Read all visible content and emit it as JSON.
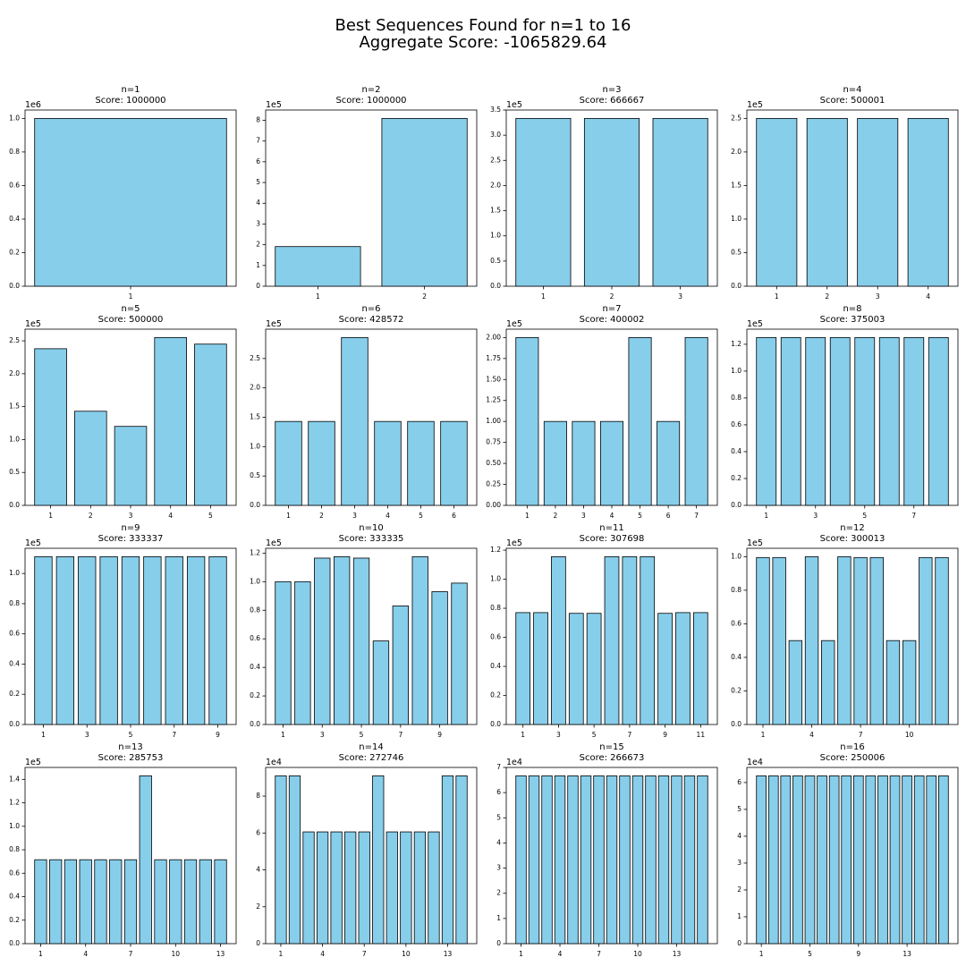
{
  "figure": {
    "title": "Best Sequences Found for n=1 to 16",
    "subtitle": "Aggregate Score: -1065829.64"
  },
  "chart_data": [
    {
      "type": "bar",
      "title": "n=1",
      "subtitle": "Score: 1000000",
      "y_offset_label": "1e6",
      "color": "#87ceeb",
      "categories": [
        "1"
      ],
      "values": [
        1000000
      ],
      "ylim": [
        0,
        1050000
      ],
      "yticks": [
        {
          "value": 0,
          "label": "0.0"
        },
        {
          "value": 200000,
          "label": "0.2"
        },
        {
          "value": 400000,
          "label": "0.4"
        },
        {
          "value": 600000,
          "label": "0.6"
        },
        {
          "value": 800000,
          "label": "0.8"
        },
        {
          "value": 1000000,
          "label": "1.0"
        }
      ]
    },
    {
      "type": "bar",
      "title": "n=2",
      "subtitle": "Score: 1000000",
      "y_offset_label": "1e5",
      "color": "#87ceeb",
      "categories": [
        "1",
        "2"
      ],
      "values": [
        190983,
        809017
      ],
      "ylim": [
        0,
        849468
      ],
      "yticks": [
        {
          "value": 0,
          "label": "0"
        },
        {
          "value": 100000,
          "label": "1"
        },
        {
          "value": 200000,
          "label": "2"
        },
        {
          "value": 300000,
          "label": "3"
        },
        {
          "value": 400000,
          "label": "4"
        },
        {
          "value": 500000,
          "label": "5"
        },
        {
          "value": 600000,
          "label": "6"
        },
        {
          "value": 700000,
          "label": "7"
        },
        {
          "value": 800000,
          "label": "8"
        }
      ]
    },
    {
      "type": "bar",
      "title": "n=3",
      "subtitle": "Score: 666667",
      "y_offset_label": "1e5",
      "color": "#87ceeb",
      "categories": [
        "1",
        "2",
        "3"
      ],
      "values": [
        333333,
        333333,
        333333
      ],
      "ylim": [
        0,
        350000
      ],
      "yticks": [
        {
          "value": 0,
          "label": "0.0"
        },
        {
          "value": 50000,
          "label": "0.5"
        },
        {
          "value": 100000,
          "label": "1.0"
        },
        {
          "value": 150000,
          "label": "1.5"
        },
        {
          "value": 200000,
          "label": "2.0"
        },
        {
          "value": 250000,
          "label": "2.5"
        },
        {
          "value": 300000,
          "label": "3.0"
        },
        {
          "value": 350000,
          "label": "3.5"
        }
      ]
    },
    {
      "type": "bar",
      "title": "n=4",
      "subtitle": "Score: 500001",
      "y_offset_label": "1e5",
      "color": "#87ceeb",
      "categories": [
        "1",
        "2",
        "3",
        "4"
      ],
      "values": [
        250000,
        250000,
        250000,
        250000
      ],
      "ylim": [
        0,
        262500
      ],
      "yticks": [
        {
          "value": 0,
          "label": "0.0"
        },
        {
          "value": 50000,
          "label": "0.5"
        },
        {
          "value": 100000,
          "label": "1.0"
        },
        {
          "value": 150000,
          "label": "1.5"
        },
        {
          "value": 200000,
          "label": "2.0"
        },
        {
          "value": 250000,
          "label": "2.5"
        }
      ]
    },
    {
      "type": "bar",
      "title": "n=5",
      "subtitle": "Score: 500000",
      "y_offset_label": "1e5",
      "color": "#87ceeb",
      "categories": [
        "1",
        "2",
        "3",
        "4",
        "5"
      ],
      "values": [
        238000,
        143000,
        120000,
        255000,
        245000
      ],
      "ylim": [
        0,
        267750
      ],
      "yticks": [
        {
          "value": 0,
          "label": "0.0"
        },
        {
          "value": 50000,
          "label": "0.5"
        },
        {
          "value": 100000,
          "label": "1.0"
        },
        {
          "value": 150000,
          "label": "1.5"
        },
        {
          "value": 200000,
          "label": "2.0"
        },
        {
          "value": 250000,
          "label": "2.5"
        }
      ]
    },
    {
      "type": "bar",
      "title": "n=6",
      "subtitle": "Score: 428572",
      "y_offset_label": "1e5",
      "color": "#87ceeb",
      "categories": [
        "1",
        "2",
        "3",
        "4",
        "5",
        "6"
      ],
      "values": [
        142857,
        142857,
        285714,
        142857,
        142857,
        142857
      ],
      "ylim": [
        0,
        300000
      ],
      "yticks": [
        {
          "value": 0,
          "label": "0.0"
        },
        {
          "value": 50000,
          "label": "0.5"
        },
        {
          "value": 100000,
          "label": "1.0"
        },
        {
          "value": 150000,
          "label": "1.5"
        },
        {
          "value": 200000,
          "label": "2.0"
        },
        {
          "value": 250000,
          "label": "2.5"
        }
      ]
    },
    {
      "type": "bar",
      "title": "n=7",
      "subtitle": "Score: 400002",
      "y_offset_label": "1e5",
      "color": "#87ceeb",
      "categories": [
        "1",
        "2",
        "3",
        "4",
        "5",
        "6",
        "7"
      ],
      "values": [
        200000,
        100000,
        100000,
        100000,
        200000,
        100000,
        200000
      ],
      "ylim": [
        0,
        210000
      ],
      "yticks": [
        {
          "value": 0,
          "label": "0.00"
        },
        {
          "value": 25000,
          "label": "0.25"
        },
        {
          "value": 50000,
          "label": "0.50"
        },
        {
          "value": 75000,
          "label": "0.75"
        },
        {
          "value": 100000,
          "label": "1.00"
        },
        {
          "value": 125000,
          "label": "1.25"
        },
        {
          "value": 150000,
          "label": "1.50"
        },
        {
          "value": 175000,
          "label": "1.75"
        },
        {
          "value": 200000,
          "label": "2.00"
        }
      ]
    },
    {
      "type": "bar",
      "title": "n=8",
      "subtitle": "Score: 375003",
      "y_offset_label": "1e5",
      "color": "#87ceeb",
      "categories": [
        "1",
        null,
        "3",
        null,
        "5",
        null,
        "7",
        null
      ],
      "values": [
        125000,
        125000,
        125000,
        125000,
        125000,
        125000,
        125000,
        125000
      ],
      "ylim": [
        0,
        131250
      ],
      "yticks": [
        {
          "value": 0,
          "label": "0.0"
        },
        {
          "value": 20000,
          "label": "0.2"
        },
        {
          "value": 40000,
          "label": "0.4"
        },
        {
          "value": 60000,
          "label": "0.6"
        },
        {
          "value": 80000,
          "label": "0.8"
        },
        {
          "value": 100000,
          "label": "1.0"
        },
        {
          "value": 120000,
          "label": "1.2"
        }
      ]
    },
    {
      "type": "bar",
      "title": "n=9",
      "subtitle": "Score: 333337",
      "y_offset_label": "1e5",
      "color": "#87ceeb",
      "categories": [
        "1",
        null,
        "3",
        null,
        "5",
        null,
        "7",
        null,
        "9"
      ],
      "values": [
        111111,
        111111,
        111111,
        111111,
        111111,
        111111,
        111111,
        111111,
        111111
      ],
      "ylim": [
        0,
        116667
      ],
      "yticks": [
        {
          "value": 0,
          "label": "0.0"
        },
        {
          "value": 20000,
          "label": "0.2"
        },
        {
          "value": 40000,
          "label": "0.4"
        },
        {
          "value": 60000,
          "label": "0.6"
        },
        {
          "value": 80000,
          "label": "0.8"
        },
        {
          "value": 100000,
          "label": "1.0"
        }
      ]
    },
    {
      "type": "bar",
      "title": "n=10",
      "subtitle": "Score: 333335",
      "y_offset_label": "1e5",
      "color": "#87ceeb",
      "categories": [
        "1",
        null,
        "3",
        null,
        "5",
        null,
        "7",
        null,
        "9",
        null
      ],
      "values": [
        100000,
        100000,
        116500,
        117500,
        116500,
        58500,
        83000,
        117500,
        93000,
        99000
      ],
      "ylim": [
        0,
        123375
      ],
      "yticks": [
        {
          "value": 0,
          "label": "0.0"
        },
        {
          "value": 20000,
          "label": "0.2"
        },
        {
          "value": 40000,
          "label": "0.4"
        },
        {
          "value": 60000,
          "label": "0.6"
        },
        {
          "value": 80000,
          "label": "0.8"
        },
        {
          "value": 100000,
          "label": "1.0"
        },
        {
          "value": 120000,
          "label": "1.2"
        }
      ]
    },
    {
      "type": "bar",
      "title": "n=11",
      "subtitle": "Score: 307698",
      "y_offset_label": "1e5",
      "color": "#87ceeb",
      "categories": [
        "1",
        null,
        "3",
        null,
        "5",
        null,
        "7",
        null,
        "9",
        null,
        "11"
      ],
      "values": [
        77000,
        77000,
        115500,
        76500,
        76500,
        115500,
        115500,
        115500,
        76500,
        77000,
        77000
      ],
      "ylim": [
        0,
        121275
      ],
      "yticks": [
        {
          "value": 0,
          "label": "0.0"
        },
        {
          "value": 20000,
          "label": "0.2"
        },
        {
          "value": 40000,
          "label": "0.4"
        },
        {
          "value": 60000,
          "label": "0.6"
        },
        {
          "value": 80000,
          "label": "0.8"
        },
        {
          "value": 100000,
          "label": "1.0"
        },
        {
          "value": 120000,
          "label": "1.2"
        }
      ]
    },
    {
      "type": "bar",
      "title": "n=12",
      "subtitle": "Score: 300013",
      "y_offset_label": "1e5",
      "color": "#87ceeb",
      "categories": [
        "1",
        null,
        null,
        "4",
        null,
        null,
        "7",
        null,
        null,
        "10",
        null,
        null
      ],
      "values": [
        99500,
        99500,
        50000,
        100000,
        50000,
        100000,
        99500,
        99500,
        50000,
        50000,
        99500,
        99500
      ],
      "ylim": [
        0,
        105000
      ],
      "yticks": [
        {
          "value": 0,
          "label": "0.0"
        },
        {
          "value": 20000,
          "label": "0.2"
        },
        {
          "value": 40000,
          "label": "0.4"
        },
        {
          "value": 60000,
          "label": "0.6"
        },
        {
          "value": 80000,
          "label": "0.8"
        },
        {
          "value": 100000,
          "label": "1.0"
        }
      ]
    },
    {
      "type": "bar",
      "title": "n=13",
      "subtitle": "Score: 285753",
      "y_offset_label": "1e5",
      "color": "#87ceeb",
      "categories": [
        "1",
        null,
        null,
        "4",
        null,
        null,
        "7",
        null,
        null,
        "10",
        null,
        null,
        "13"
      ],
      "values": [
        71500,
        71500,
        71500,
        71500,
        71500,
        71500,
        71500,
        143000,
        71500,
        71500,
        71500,
        71500,
        71500
      ],
      "ylim": [
        0,
        150150
      ],
      "yticks": [
        {
          "value": 0,
          "label": "0.0"
        },
        {
          "value": 20000,
          "label": "0.2"
        },
        {
          "value": 40000,
          "label": "0.4"
        },
        {
          "value": 60000,
          "label": "0.6"
        },
        {
          "value": 80000,
          "label": "0.8"
        },
        {
          "value": 100000,
          "label": "1.0"
        },
        {
          "value": 120000,
          "label": "1.2"
        },
        {
          "value": 140000,
          "label": "1.4"
        }
      ]
    },
    {
      "type": "bar",
      "title": "n=14",
      "subtitle": "Score: 272746",
      "y_offset_label": "1e4",
      "color": "#87ceeb",
      "categories": [
        "1",
        null,
        null,
        "4",
        null,
        null,
        "7",
        null,
        null,
        "10",
        null,
        null,
        "13",
        null
      ],
      "values": [
        91000,
        91000,
        60600,
        60600,
        60600,
        60600,
        60600,
        91000,
        60600,
        60600,
        60600,
        60600,
        91000,
        91000
      ],
      "ylim": [
        0,
        95550
      ],
      "yticks": [
        {
          "value": 0,
          "label": "0"
        },
        {
          "value": 20000,
          "label": "2"
        },
        {
          "value": 40000,
          "label": "4"
        },
        {
          "value": 60000,
          "label": "6"
        },
        {
          "value": 80000,
          "label": "8"
        }
      ]
    },
    {
      "type": "bar",
      "title": "n=15",
      "subtitle": "Score: 266673",
      "y_offset_label": "1e4",
      "color": "#87ceeb",
      "categories": [
        "1",
        null,
        null,
        "4",
        null,
        null,
        "7",
        null,
        null,
        "10",
        null,
        null,
        "13",
        null,
        null
      ],
      "values": [
        66667,
        66667,
        66667,
        66667,
        66667,
        66667,
        66667,
        66667,
        66667,
        66667,
        66667,
        66667,
        66667,
        66667,
        66667
      ],
      "ylim": [
        0,
        70000
      ],
      "yticks": [
        {
          "value": 0,
          "label": "0"
        },
        {
          "value": 10000,
          "label": "1"
        },
        {
          "value": 20000,
          "label": "2"
        },
        {
          "value": 30000,
          "label": "3"
        },
        {
          "value": 40000,
          "label": "4"
        },
        {
          "value": 50000,
          "label": "5"
        },
        {
          "value": 60000,
          "label": "6"
        },
        {
          "value": 70000,
          "label": "7"
        }
      ]
    },
    {
      "type": "bar",
      "title": "n=16",
      "subtitle": "Score: 250006",
      "y_offset_label": "1e4",
      "color": "#87ceeb",
      "categories": [
        "1",
        null,
        null,
        null,
        "5",
        null,
        null,
        null,
        "9",
        null,
        null,
        null,
        "13",
        null,
        null,
        null
      ],
      "values": [
        62500,
        62500,
        62500,
        62500,
        62500,
        62500,
        62500,
        62500,
        62500,
        62500,
        62500,
        62500,
        62500,
        62500,
        62500,
        62500
      ],
      "ylim": [
        0,
        65625
      ],
      "yticks": [
        {
          "value": 0,
          "label": "0"
        },
        {
          "value": 10000,
          "label": "1"
        },
        {
          "value": 20000,
          "label": "2"
        },
        {
          "value": 30000,
          "label": "3"
        },
        {
          "value": 40000,
          "label": "4"
        },
        {
          "value": 50000,
          "label": "5"
        },
        {
          "value": 60000,
          "label": "6"
        }
      ]
    }
  ]
}
